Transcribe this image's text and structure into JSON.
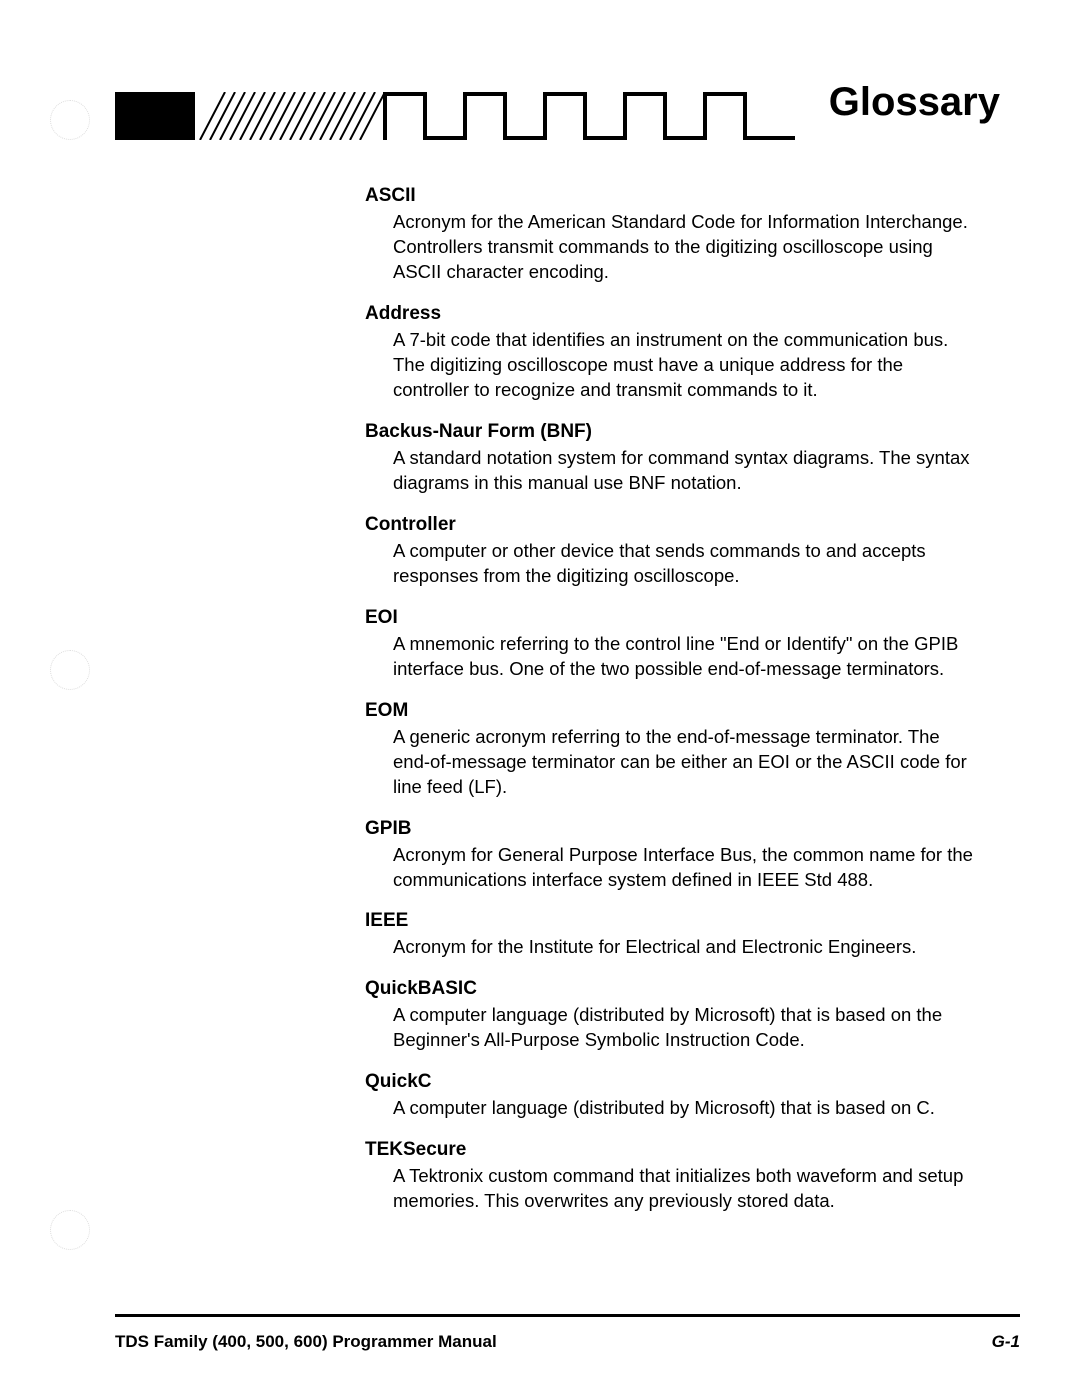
{
  "header": {
    "title": "Glossary"
  },
  "glossary": [
    {
      "term": "ASCII",
      "definition": "Acronym for the American Standard Code for Information Interchange. Controllers transmit commands to the digitizing oscilloscope using ASCII character encoding."
    },
    {
      "term": "Address",
      "definition": "A 7-bit code that identifies an instrument on the communication bus. The digitizing oscilloscope must have a unique address for the controller to recognize and transmit commands to it."
    },
    {
      "term": "Backus-Naur Form (BNF)",
      "definition": "A standard notation system for command syntax diagrams. The syntax diagrams in this manual use BNF notation."
    },
    {
      "term": "Controller",
      "definition": "A computer or other device that sends commands to and accepts responses from the digitizing oscilloscope."
    },
    {
      "term": "EOI",
      "definition": "A mnemonic referring to the control line \"End or Identify\" on the GPIB interface bus. One of the two possible end-of-message terminators."
    },
    {
      "term": "EOM",
      "definition": "A generic acronym referring to the end-of-message terminator. The end-of-message terminator can be either an EOI or the ASCII code for line feed (LF)."
    },
    {
      "term": "GPIB",
      "definition": "Acronym for General Purpose Interface Bus, the common name for the communications interface system defined in IEEE Std 488."
    },
    {
      "term": "IEEE",
      "definition": "Acronym for the Institute for Electrical and Electronic Engineers."
    },
    {
      "term": "QuickBASIC",
      "definition": "A computer language (distributed by Microsoft) that is based on the Beginner's All-Purpose Symbolic Instruction Code."
    },
    {
      "term": "QuickC",
      "definition": "A computer language (distributed by Microsoft) that is based on C."
    },
    {
      "term": "TEKSecure",
      "definition": "A Tektronix custom command that initializes both waveform and setup memories. This overwrites any previously stored data."
    }
  ],
  "footer": {
    "left": "TDS Family (400, 500, 600) Programmer Manual",
    "right": "G-1"
  },
  "style": {
    "page_bg": "#ffffff",
    "text_color": "#000000",
    "term_fontsize": 19,
    "def_fontsize": 18.5,
    "title_fontsize": 40,
    "footer_fontsize": 17,
    "banner_fill": "#000000",
    "banner_hatch": "#000000"
  }
}
